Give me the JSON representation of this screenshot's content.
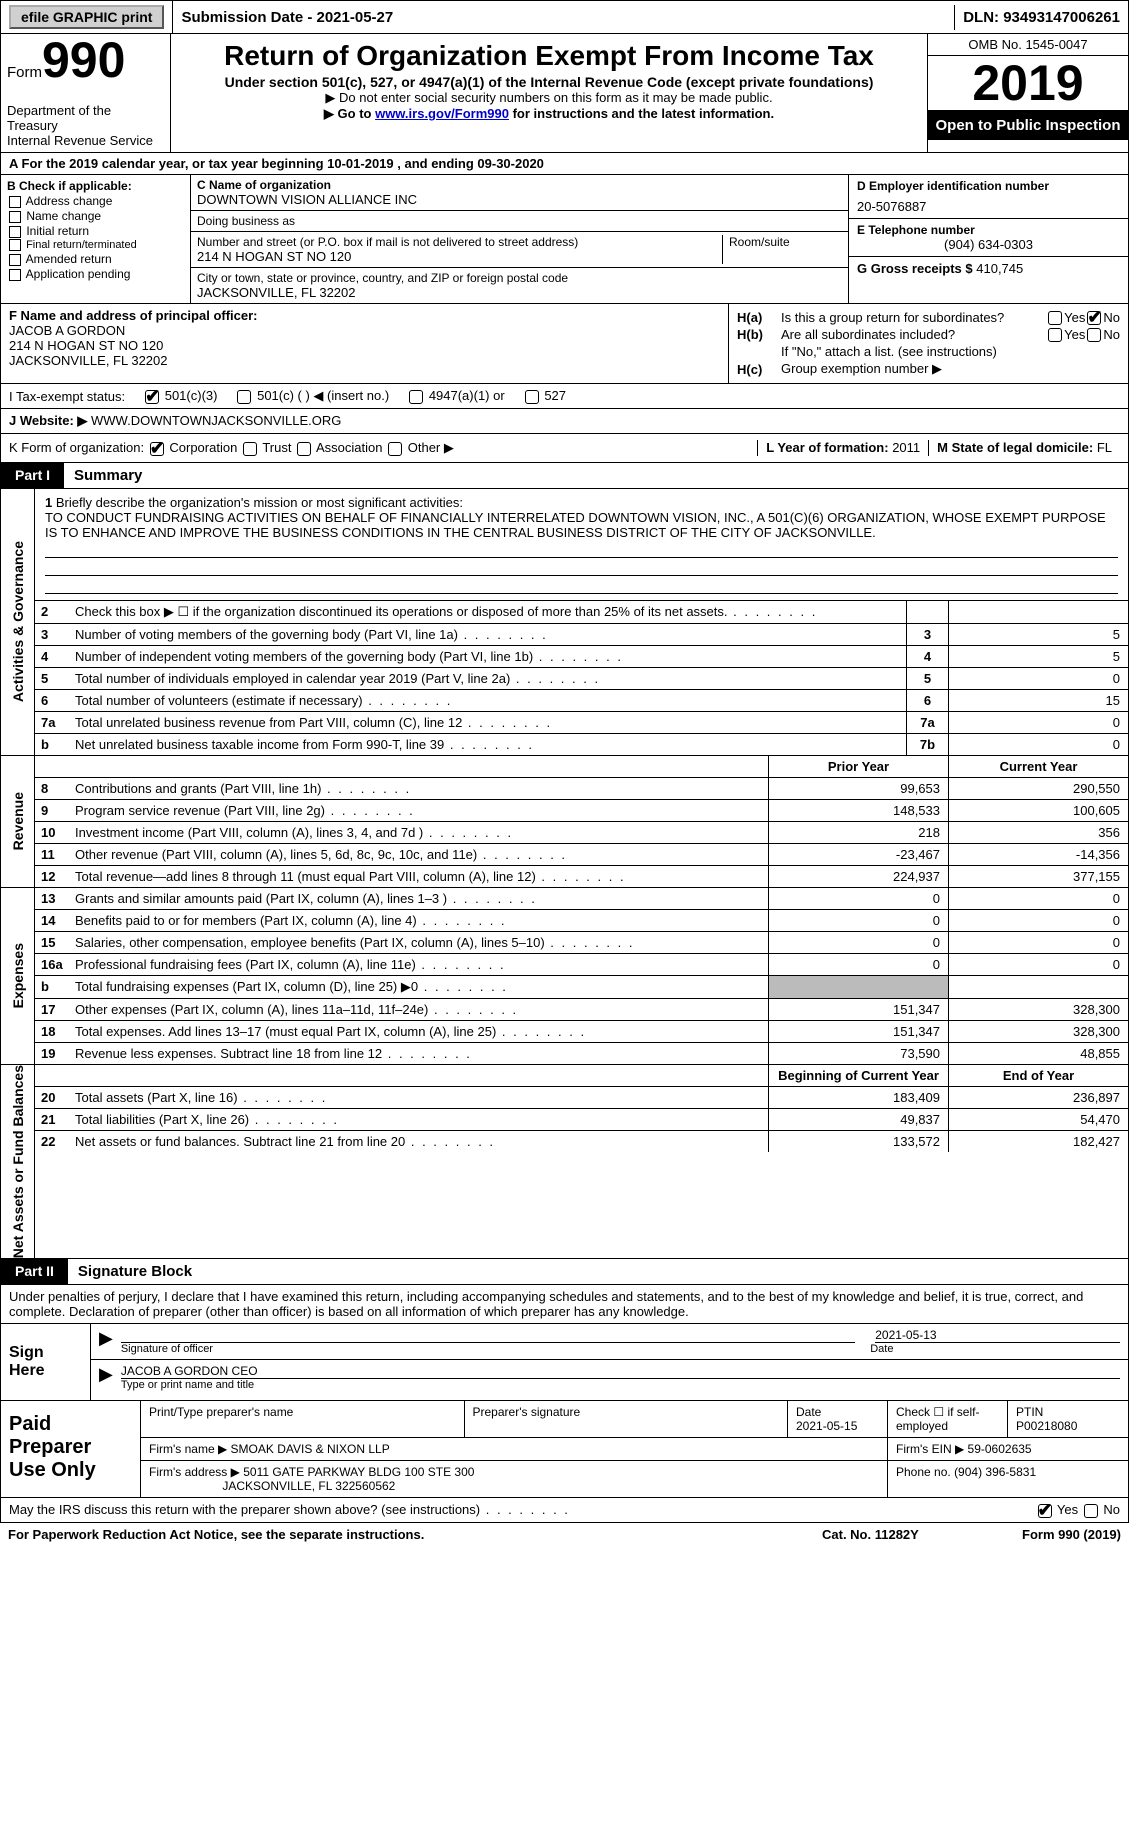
{
  "topbar": {
    "efile_btn": "efile GRAPHIC print",
    "submission": "Submission Date - 2021-05-27",
    "dln": "DLN: 93493147006261"
  },
  "header": {
    "form_word": "Form",
    "form_num": "990",
    "dept1": "Department of the Treasury",
    "dept2": "Internal Revenue Service",
    "title": "Return of Organization Exempt From Income Tax",
    "sub1": "Under section 501(c), 527, or 4947(a)(1) of the Internal Revenue Code (except private foundations)",
    "sub2": "▶ Do not enter social security numbers on this form as it may be made public.",
    "sub3_pre": "▶ Go to ",
    "sub3_link": "www.irs.gov/Form990",
    "sub3_post": " for instructions and the latest information.",
    "omb": "OMB No. 1545-0047",
    "year": "2019",
    "inspect": "Open to Public Inspection"
  },
  "line_a": "A For the 2019 calendar year, or tax year beginning 10-01-2019   , and ending 09-30-2020",
  "section_b": {
    "hdr": "B Check if applicable:",
    "opts": [
      "Address change",
      "Name change",
      "Initial return",
      "Final return/terminated",
      "Amended return",
      "Application pending"
    ]
  },
  "section_c": {
    "name_lbl": "C Name of organization",
    "name_val": "DOWNTOWN VISION ALLIANCE INC",
    "dba_lbl": "Doing business as",
    "street_lbl": "Number and street (or P.O. box if mail is not delivered to street address)",
    "street_val": "214 N HOGAN ST NO 120",
    "suite_lbl": "Room/suite",
    "city_lbl": "City or town, state or province, country, and ZIP or foreign postal code",
    "city_val": "JACKSONVILLE, FL  32202"
  },
  "section_d": {
    "ein_lbl": "D Employer identification number",
    "ein_val": "20-5076887",
    "tel_lbl": "E Telephone number",
    "tel_val": "(904) 634-0303",
    "gross_lbl": "G Gross receipts $",
    "gross_val": "410,745"
  },
  "section_f": {
    "lbl": "F Name and address of principal officer:",
    "name": "JACOB A GORDON",
    "addr1": "214 N HOGAN ST NO 120",
    "addr2": "JACKSONVILLE, FL  32202"
  },
  "section_h": {
    "ha_lbl": "H(a)",
    "ha_txt": "Is this a group return for subordinates?",
    "hb_lbl": "H(b)",
    "hb_txt": "Are all subordinates included?",
    "hb_note": "If \"No,\" attach a list. (see instructions)",
    "hc_lbl": "H(c)",
    "hc_txt": "Group exemption number ▶",
    "yes": "Yes",
    "no": "No"
  },
  "row_i": {
    "lbl": "I   Tax-exempt status:",
    "o1": "501(c)(3)",
    "o2": "501(c) (  ) ◀ (insert no.)",
    "o3": "4947(a)(1) or",
    "o4": "527"
  },
  "row_j": {
    "lbl": "J   Website: ▶",
    "val": "WWW.DOWNTOWNJACKSONVILLE.ORG"
  },
  "row_k": {
    "lbl": "K Form of organization:",
    "o1": "Corporation",
    "o2": "Trust",
    "o3": "Association",
    "o4": "Other ▶",
    "l_lbl": "L Year of formation:",
    "l_val": "2011",
    "m_lbl": "M State of legal domicile:",
    "m_val": "FL"
  },
  "part1": {
    "tag": "Part I",
    "title": "Summary"
  },
  "sum1": {
    "num": "1",
    "lbl": "Briefly describe the organization's mission or most significant activities:",
    "text": "TO CONDUCT FUNDRAISING ACTIVITIES ON BEHALF OF FINANCIALLY INTERRELATED DOWNTOWN VISION, INC., A 501(C)(6) ORGANIZATION, WHOSE EXEMPT PURPOSE IS TO ENHANCE AND IMPROVE THE BUSINESS CONDITIONS IN THE CENTRAL BUSINESS DISTRICT OF THE CITY OF JACKSONVILLE."
  },
  "gov_lines": [
    {
      "n": "2",
      "d": "Check this box ▶ ☐ if the organization discontinued its operations or disposed of more than 25% of its net assets.",
      "b": "",
      "v": ""
    },
    {
      "n": "3",
      "d": "Number of voting members of the governing body (Part VI, line 1a)",
      "b": "3",
      "v": "5"
    },
    {
      "n": "4",
      "d": "Number of independent voting members of the governing body (Part VI, line 1b)",
      "b": "4",
      "v": "5"
    },
    {
      "n": "5",
      "d": "Total number of individuals employed in calendar year 2019 (Part V, line 2a)",
      "b": "5",
      "v": "0"
    },
    {
      "n": "6",
      "d": "Total number of volunteers (estimate if necessary)",
      "b": "6",
      "v": "15"
    },
    {
      "n": "7a",
      "d": "Total unrelated business revenue from Part VIII, column (C), line 12",
      "b": "7a",
      "v": "0"
    },
    {
      "n": "b",
      "d": "Net unrelated business taxable income from Form 990-T, line 39",
      "b": "7b",
      "v": "0"
    }
  ],
  "col_hdrs": {
    "prior": "Prior Year",
    "current": "Current Year",
    "boy": "Beginning of Current Year",
    "eoy": "End of Year"
  },
  "rev_lines": [
    {
      "n": "8",
      "d": "Contributions and grants (Part VIII, line 1h)",
      "p": "99,653",
      "c": "290,550"
    },
    {
      "n": "9",
      "d": "Program service revenue (Part VIII, line 2g)",
      "p": "148,533",
      "c": "100,605"
    },
    {
      "n": "10",
      "d": "Investment income (Part VIII, column (A), lines 3, 4, and 7d )",
      "p": "218",
      "c": "356"
    },
    {
      "n": "11",
      "d": "Other revenue (Part VIII, column (A), lines 5, 6d, 8c, 9c, 10c, and 11e)",
      "p": "-23,467",
      "c": "-14,356"
    },
    {
      "n": "12",
      "d": "Total revenue—add lines 8 through 11 (must equal Part VIII, column (A), line 12)",
      "p": "224,937",
      "c": "377,155"
    }
  ],
  "exp_lines": [
    {
      "n": "13",
      "d": "Grants and similar amounts paid (Part IX, column (A), lines 1–3 )",
      "p": "0",
      "c": "0"
    },
    {
      "n": "14",
      "d": "Benefits paid to or for members (Part IX, column (A), line 4)",
      "p": "0",
      "c": "0"
    },
    {
      "n": "15",
      "d": "Salaries, other compensation, employee benefits (Part IX, column (A), lines 5–10)",
      "p": "0",
      "c": "0"
    },
    {
      "n": "16a",
      "d": "Professional fundraising fees (Part IX, column (A), line 11e)",
      "p": "0",
      "c": "0"
    },
    {
      "n": "b",
      "d": "Total fundraising expenses (Part IX, column (D), line 25) ▶0",
      "p": "",
      "c": "",
      "shade": true
    },
    {
      "n": "17",
      "d": "Other expenses (Part IX, column (A), lines 11a–11d, 11f–24e)",
      "p": "151,347",
      "c": "328,300"
    },
    {
      "n": "18",
      "d": "Total expenses. Add lines 13–17 (must equal Part IX, column (A), line 25)",
      "p": "151,347",
      "c": "328,300"
    },
    {
      "n": "19",
      "d": "Revenue less expenses. Subtract line 18 from line 12",
      "p": "73,590",
      "c": "48,855"
    }
  ],
  "na_lines": [
    {
      "n": "20",
      "d": "Total assets (Part X, line 16)",
      "p": "183,409",
      "c": "236,897"
    },
    {
      "n": "21",
      "d": "Total liabilities (Part X, line 26)",
      "p": "49,837",
      "c": "54,470"
    },
    {
      "n": "22",
      "d": "Net assets or fund balances. Subtract line 21 from line 20",
      "p": "133,572",
      "c": "182,427"
    }
  ],
  "side_labels": {
    "gov": "Activities & Governance",
    "rev": "Revenue",
    "exp": "Expenses",
    "na": "Net Assets or Fund Balances"
  },
  "part2": {
    "tag": "Part II",
    "title": "Signature Block"
  },
  "sig": {
    "perjury": "Under penalties of perjury, I declare that I have examined this return, including accompanying schedules and statements, and to the best of my knowledge and belief, it is true, correct, and complete. Declaration of preparer (other than officer) is based on all information of which preparer has any knowledge.",
    "sign_here": "Sign Here",
    "sig_officer_lbl": "Signature of officer",
    "date_lbl": "Date",
    "date_val": "2021-05-13",
    "officer_name": "JACOB A GORDON  CEO",
    "type_lbl": "Type or print name and title"
  },
  "prep": {
    "hdr": "Paid Preparer Use Only",
    "name_lbl": "Print/Type preparer's name",
    "sig_lbl": "Preparer's signature",
    "date_lbl": "Date",
    "date_val": "2021-05-15",
    "check_lbl": "Check ☐ if self-employed",
    "ptin_lbl": "PTIN",
    "ptin_val": "P00218080",
    "firm_name_lbl": "Firm's name   ▶",
    "firm_name": "SMOAK DAVIS & NIXON LLP",
    "firm_ein_lbl": "Firm's EIN ▶",
    "firm_ein": "59-0602635",
    "firm_addr_lbl": "Firm's address ▶",
    "firm_addr1": "5011 GATE PARKWAY BLDG 100 STE 300",
    "firm_addr2": "JACKSONVILLE, FL  322560562",
    "phone_lbl": "Phone no.",
    "phone_val": "(904) 396-5831"
  },
  "discuss": {
    "txt": "May the IRS discuss this return with the preparer shown above? (see instructions)",
    "yes": "Yes",
    "no": "No"
  },
  "footer": {
    "left": "For Paperwork Reduction Act Notice, see the separate instructions.",
    "mid": "Cat. No. 11282Y",
    "right": "Form 990 (2019)"
  }
}
